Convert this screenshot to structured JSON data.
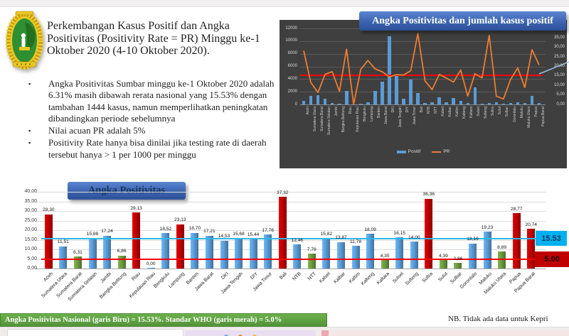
{
  "slide": {
    "title": "Perkembangan Kasus Positif dan Angka Positivitas (Positivity Rate = PR) Minggu ke-1 Oktober 2020 (4-10 Oktober 2020).",
    "bullets": [
      "Angka Positivitas Sumbar minggu ke-1 Oktober 2020 adalah 6.31% masih dibawah rerata nasional yang 15.53% dengan tambahan 1444 kasus, namun memperlihatkan peningkatan dibandingkan periode sebelumnya",
      "Nilai acuan PR adalah 5%",
      "Positivity Rate hanya bisa dinilai jika testing rate di daerah tersebut hanya > 1 per 1000 per minggu"
    ],
    "logo": "sumbar-provincial-seal",
    "banner_bottom": "Angka Positivitas Nasional (garis Biru) = 15.53%. Standar WHO (garis merah) = 5.0%",
    "note": "NB. Tidak ada data untuk Kepri"
  },
  "colors": {
    "banner_blue": "#3C63B0",
    "bar_blue": "#5B9BD5",
    "bar_red": "#C00000",
    "bar_green": "#6B9A41",
    "line_orange": "#ED7D31",
    "line_national": "#2FB6E9",
    "line_who": "#FF0000",
    "callout_cyan": "#00B0F0",
    "banner_green": "#5CA03F",
    "panel_dark": "#3F3F3F"
  },
  "chart_data": [
    {
      "type": "bar+line",
      "title": "Angka Positivitas dan jumlah kasus positif",
      "background": "dark",
      "categories": [
        "Aceh",
        "Sumatera Utara",
        "Sumatera Barat",
        "Sumatera Selatan",
        "Jambi",
        "Bangka Belitung",
        "Riau",
        "Kepulauan Riau",
        "Bengkulu",
        "Lampung",
        "Banten",
        "Jawa Barat",
        "DKI",
        "Jawa Tengah",
        "DIY",
        "Jawa Timur",
        "Bali",
        "NTB",
        "NTT",
        "Kalsel",
        "Kalbar",
        "Kaltim",
        "Kalteng",
        "Kaltara",
        "Sulsel",
        "Sulteng",
        "Sultra",
        "Sulut",
        "Sulbar",
        "Gorontalo",
        "Maluku",
        "Maluku Utara",
        "Papua",
        "Papua Barat"
      ],
      "series": [
        {
          "name": "Positif",
          "type": "bar",
          "axis": "left",
          "color": "#5B9BD5",
          "values": [
            600,
            1350,
            1444,
            900,
            200,
            80,
            2100,
            0,
            60,
            330,
            2150,
            3550,
            10750,
            4600,
            930,
            3950,
            1750,
            190,
            300,
            1120,
            380,
            1050,
            560,
            190,
            2700,
            150,
            220,
            300,
            110,
            190,
            380,
            220,
            1300,
            190
          ]
        },
        {
          "name": "PR",
          "type": "line",
          "axis": "right",
          "color": "#ED7D31",
          "values": [
            28.3,
            11.51,
            6.31,
            15.88,
            17.24,
            6.86,
            29.13,
            0.0,
            18.52,
            23.13,
            18.7,
            17.21,
            14.53,
            15.68,
            15.44,
            17.76,
            37.32,
            12.46,
            7.78,
            15.82,
            13.87,
            11.78,
            18.09,
            4.35,
            16.15,
            14.0,
            36.36,
            4.39,
            2.86,
            13.16,
            19.23,
            8.89,
            28.77,
            20.74
          ]
        }
      ],
      "left_axis": {
        "min": 0,
        "max": 12000,
        "ticks": [
          "0",
          "2000",
          "4000",
          "6000",
          "8000",
          "10000",
          "12000"
        ]
      },
      "right_axis": {
        "min": 0,
        "max": 40,
        "tick_step": 5,
        "ticks": [
          "0,00",
          "5,00",
          "10,00",
          "15,00",
          "20,00",
          "25,00",
          "30,00",
          "35,00"
        ]
      },
      "ref_line": {
        "value": 15.53,
        "color": "#FF0000"
      },
      "legend": [
        "Positif",
        "PR"
      ],
      "legend_position": "bottom"
    },
    {
      "type": "bar",
      "title": "Angka Positivitas",
      "categories": [
        "Aceh",
        "Sumatera Utara",
        "Sumatera Barat",
        "Sumatera Selatan",
        "Jambi",
        "Bangka Belitung",
        "Riau",
        "Kepulauan Riau",
        "Bengkulu",
        "Lampung",
        "Banten",
        "Jawa Barat",
        "DKI",
        "Jawa Tengah",
        "DIY",
        "Jawa Timur",
        "Bali",
        "NTB",
        "NTT",
        "Kalsel",
        "Kalbar",
        "Kaltim",
        "Kalteng",
        "Kaltara",
        "Sulsel",
        "Sulteng",
        "Sultra",
        "Sulut",
        "Sulbar",
        "Gorontalo",
        "Maluku",
        "Maluku Utara",
        "Papua",
        "Papua Barat"
      ],
      "values": [
        28.3,
        11.51,
        6.31,
        15.88,
        17.24,
        6.86,
        29.13,
        0.0,
        18.52,
        23.13,
        18.7,
        17.21,
        14.53,
        15.68,
        15.44,
        17.76,
        37.32,
        12.46,
        7.78,
        15.82,
        13.87,
        11.78,
        18.09,
        4.35,
        16.15,
        14.0,
        36.36,
        4.39,
        2.86,
        13.16,
        19.23,
        8.89,
        28.77,
        20.74
      ],
      "labels": [
        "28,30",
        "11,51",
        "6,31",
        "15,88",
        "17,24",
        "6,86",
        "29,13",
        "0,00",
        "18,52",
        "23,13",
        "18,70",
        "17,21",
        "14,53",
        "15,68",
        "15,44",
        "17,76",
        "37,32",
        "12,46",
        "7,78",
        "15,82",
        "13,87",
        "11,78",
        "18,09",
        "4,35",
        "16,15",
        "14,00",
        "36,36",
        "4,39",
        "2,86",
        "13,16",
        "19,23",
        "8,89",
        "28,77",
        "20,74"
      ],
      "bar_colors": [
        "red",
        "blue",
        "green",
        "blue",
        "blue",
        "green",
        "red",
        "blue",
        "blue",
        "red",
        "blue",
        "blue",
        "blue",
        "blue",
        "blue",
        "blue",
        "red",
        "blue",
        "green",
        "blue",
        "blue",
        "blue",
        "blue",
        "green",
        "blue",
        "blue",
        "red",
        "green",
        "green",
        "blue",
        "blue",
        "green",
        "red",
        "red"
      ],
      "ylim": [
        0,
        40
      ],
      "yticks": [
        "0,00",
        "5,00",
        "10,00",
        "15,00",
        "20,00",
        "25,00",
        "30,00",
        "35,00",
        "40,00"
      ],
      "grid": true,
      "ref_lines": [
        {
          "name": "Nasional",
          "value": 15.53,
          "label": "15.53",
          "color": "#2FB6E9"
        },
        {
          "name": "WHO",
          "value": 5.0,
          "label": "5.00",
          "color": "#FF0000"
        }
      ]
    }
  ]
}
